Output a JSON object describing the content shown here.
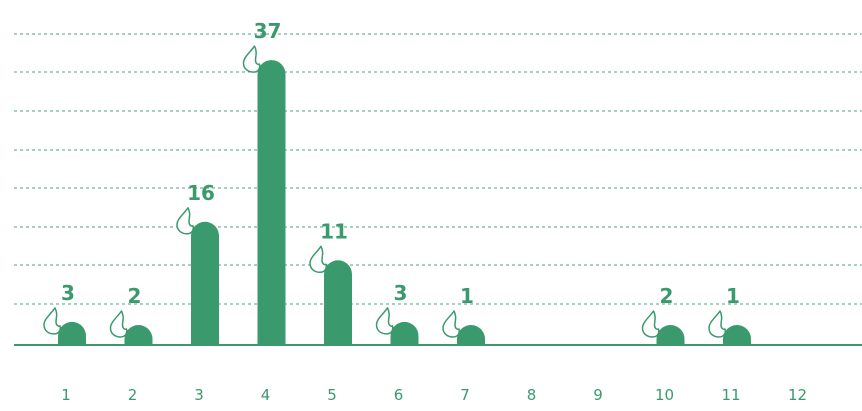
{
  "chart_data": {
    "type": "bar",
    "categories": [
      "1",
      "2",
      "3",
      "4",
      "5",
      "6",
      "7",
      "8",
      "9",
      "10",
      "11",
      "12"
    ],
    "values": [
      3,
      2,
      16,
      37,
      11,
      3,
      1,
      0,
      0,
      2,
      1,
      0
    ],
    "title": "",
    "xlabel": "",
    "ylabel": "",
    "ylim": [
      0,
      40
    ],
    "grid": true,
    "data_labels": true,
    "bar_icon": "flame-icon",
    "colors": {
      "bar": "#3a9a6e",
      "grid": "#3a9a6e",
      "text": "#3a9a6e"
    }
  }
}
